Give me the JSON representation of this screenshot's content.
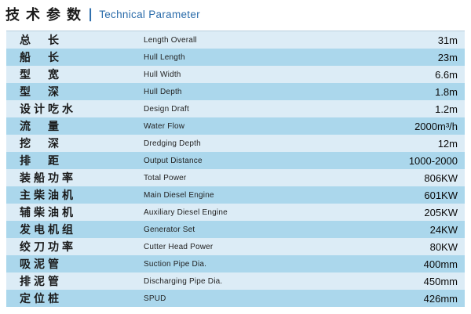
{
  "header": {
    "title_cn": "技术参数",
    "separator": "|",
    "title_en": "Technical Parameter"
  },
  "colors": {
    "accent_blue": "#2b6caa",
    "row_light": "#dcecf6",
    "row_dark": "#abd7ec"
  },
  "table": {
    "rows": [
      {
        "cn": "总　长",
        "en": "Length Overall",
        "value": "31m"
      },
      {
        "cn": "船　长",
        "en": "Hull Length",
        "value": "23m"
      },
      {
        "cn": "型　宽",
        "en": "Hull Width",
        "value": "6.6m"
      },
      {
        "cn": "型　深",
        "en": "Hull Depth",
        "value": "1.8m"
      },
      {
        "cn": "设计吃水",
        "en": "Design Draft",
        "value": "1.2m"
      },
      {
        "cn": "流　量",
        "en": "Water Flow",
        "value": "2000m³/h"
      },
      {
        "cn": "挖　深",
        "en": "Dredging Depth",
        "value": "12m"
      },
      {
        "cn": "排　距",
        "en": "Output Distance",
        "value": "1000-2000"
      },
      {
        "cn": "装船功率",
        "en": "Total Power",
        "value": "806KW"
      },
      {
        "cn": "主柴油机",
        "en": "Main Diesel Engine",
        "value": "601KW"
      },
      {
        "cn": "辅柴油机",
        "en": "Auxiliary Diesel Engine",
        "value": "205KW"
      },
      {
        "cn": "发电机组",
        "en": "Generator Set",
        "value": "24KW"
      },
      {
        "cn": "绞刀功率",
        "en": "Cutter Head Power",
        "value": "80KW"
      },
      {
        "cn": "吸泥管",
        "en": "Suction Pipe Dia.",
        "value": "400mm"
      },
      {
        "cn": "排泥管",
        "en": "Discharging Pipe Dia.",
        "value": "450mm"
      },
      {
        "cn": "定位桩",
        "en": "SPUD",
        "value": "426mm"
      }
    ]
  }
}
